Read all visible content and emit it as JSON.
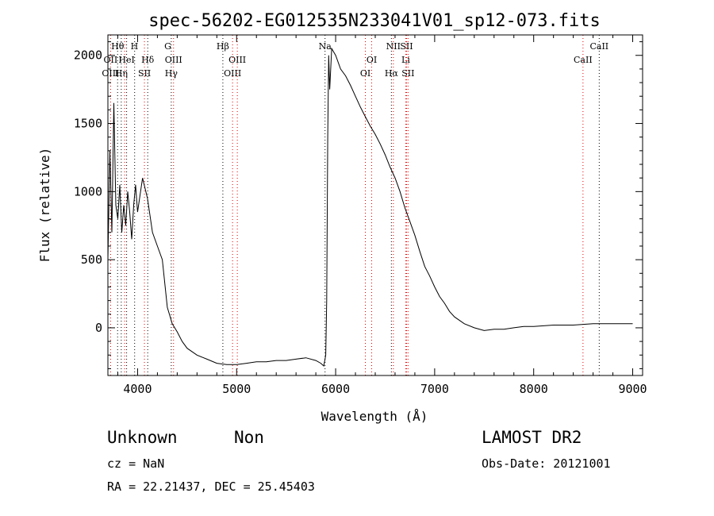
{
  "chart_data": {
    "type": "line",
    "title": "spec-56202-EG012535N233041V01_sp12-073.fits",
    "xlabel": "Wavelength (Å)",
    "ylabel": "Flux (relative)",
    "xlim": [
      3700,
      9100
    ],
    "ylim": [
      -350,
      2150
    ],
    "xticks": [
      4000,
      5000,
      6000,
      7000,
      8000,
      9000
    ],
    "yticks": [
      0,
      500,
      1000,
      1500,
      2000
    ],
    "grid": false,
    "legend": "none",
    "series": [
      {
        "x": [
          3700,
          3720,
          3740,
          3760,
          3780,
          3800,
          3820,
          3840,
          3860,
          3880,
          3900,
          3920,
          3940,
          3960,
          3980,
          4000,
          4050,
          4100,
          4150,
          4200,
          4250,
          4300,
          4350,
          4400,
          4450,
          4500,
          4600,
          4700,
          4800,
          4900,
          5000,
          5100,
          5200,
          5300,
          5400,
          5500,
          5600,
          5700,
          5800,
          5850,
          5880,
          5900,
          5910,
          5920,
          5930,
          5940,
          5960,
          6000,
          6050,
          6100,
          6150,
          6200,
          6250,
          6300,
          6350,
          6400,
          6450,
          6500,
          6550,
          6600,
          6650,
          6700,
          6750,
          6800,
          6850,
          6900,
          6950,
          7000,
          7050,
          7100,
          7150,
          7200,
          7300,
          7400,
          7500,
          7600,
          7700,
          7800,
          7900,
          8000,
          8200,
          8400,
          8600,
          8800,
          9000
        ],
        "y": [
          500,
          1300,
          700,
          1650,
          900,
          800,
          1050,
          700,
          900,
          750,
          1000,
          850,
          650,
          900,
          1050,
          850,
          1100,
          950,
          700,
          600,
          500,
          150,
          30,
          -30,
          -100,
          -150,
          -200,
          -230,
          -260,
          -270,
          -270,
          -260,
          -250,
          -250,
          -240,
          -240,
          -230,
          -220,
          -240,
          -260,
          -280,
          -200,
          200,
          1400,
          2000,
          1750,
          2050,
          2000,
          1900,
          1850,
          1780,
          1700,
          1620,
          1550,
          1480,
          1420,
          1350,
          1270,
          1180,
          1100,
          1000,
          880,
          780,
          680,
          560,
          450,
          380,
          300,
          230,
          180,
          120,
          80,
          30,
          0,
          -20,
          -10,
          -10,
          0,
          10,
          10,
          20,
          20,
          30,
          30,
          30
        ]
      }
    ],
    "annotations": {
      "row1": [
        {
          "text": "Hθ",
          "wl": 3798
        },
        {
          "text": "H",
          "wl": 3968
        },
        {
          "text": "G",
          "wl": 4305
        },
        {
          "text": "Hβ",
          "wl": 4861
        },
        {
          "text": "Na",
          "wl": 5893
        },
        {
          "text": "NII",
          "wl": 6583
        },
        {
          "text": "SII",
          "wl": 6716
        },
        {
          "text": "CaII",
          "wl": 8662
        }
      ],
      "row2": [
        {
          "text": "OII",
          "wl": 3727
        },
        {
          "text": "HeI",
          "wl": 3889
        },
        {
          "text": "Hδ",
          "wl": 4102
        },
        {
          "text": "OIII",
          "wl": 4363
        },
        {
          "text": "OIII",
          "wl": 5007
        },
        {
          "text": "OI",
          "wl": 6364
        },
        {
          "text": "Li",
          "wl": 6708
        },
        {
          "text": "CaII",
          "wl": 8498
        }
      ],
      "row3": [
        {
          "text": "OIII",
          "wl": 3727
        },
        {
          "text": "Hη",
          "wl": 3835
        },
        {
          "text": "SII",
          "wl": 4069
        },
        {
          "text": "Hγ",
          "wl": 4340
        },
        {
          "text": "OIII",
          "wl": 4959
        },
        {
          "text": "OI",
          "wl": 6300
        },
        {
          "text": "Hα",
          "wl": 6563
        },
        {
          "text": "SII",
          "wl": 6731
        }
      ],
      "lines_black": [
        3798,
        3835,
        3889,
        3970,
        4102,
        4340,
        4861,
        5893,
        6563,
        8662
      ],
      "lines_red": [
        3727,
        3869,
        4069,
        4363,
        4959,
        5007,
        6300,
        6364,
        6583,
        6708,
        6716,
        6731,
        8498
      ]
    }
  },
  "info": {
    "class_label": "Unknown",
    "subclass_label": "Non",
    "cz": "cz = NaN",
    "coords": "RA =  22.21437, DEC =  25.45403",
    "survey": "LAMOST DR2",
    "obs_date": "Obs-Date: 20121001"
  }
}
